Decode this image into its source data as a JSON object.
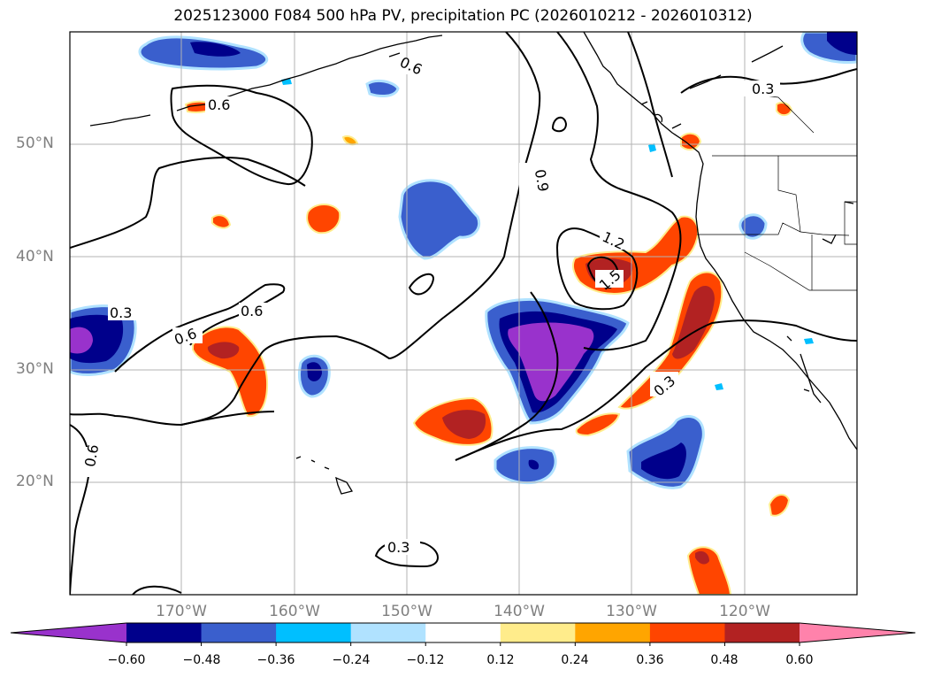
{
  "title": "2025123000 F084 500 hPa PV, precipitation PC (2026010212 - 2026010312)",
  "map": {
    "lat_labels": [
      "50°N",
      "40°N",
      "30°N",
      "20°N"
    ],
    "lon_labels": [
      "170°W",
      "160°W",
      "150°W",
      "140°W",
      "130°W",
      "120°W"
    ],
    "contour_labels": [
      "0.6",
      "0.6",
      "0.3",
      "0.6",
      "0.6",
      "0.3",
      "0.9",
      "1.2",
      "1.5",
      "0.3",
      "0.6",
      "0.3"
    ]
  },
  "colorbar": {
    "ticks": [
      "−0.60",
      "−0.48",
      "−0.36",
      "−0.24",
      "−0.12",
      "0.12",
      "0.24",
      "0.36",
      "0.48",
      "0.60"
    ],
    "colors": [
      "#9932cc",
      "#00008b",
      "#3a5fcd",
      "#00bfff",
      "#b0e2ff",
      "#ffffff",
      "#ffec8b",
      "#ffa500",
      "#ff4500",
      "#b22222",
      "#ff82ab"
    ]
  }
}
